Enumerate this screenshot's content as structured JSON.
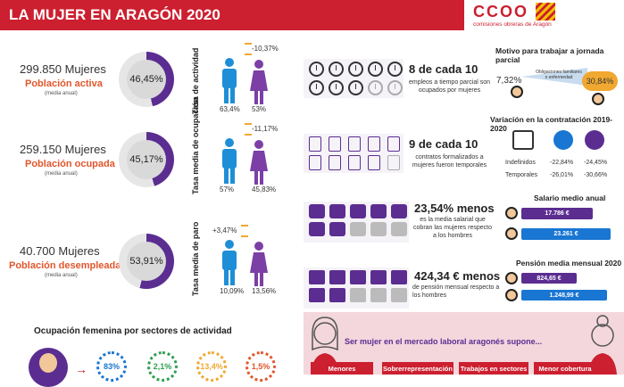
{
  "header": {
    "title": "LA MUJER EN ARAGÓN 2020",
    "logo_text": "CCOO",
    "logo_sub": "comisiones obreras de Aragón"
  },
  "colors": {
    "red": "#cc1f2f",
    "purple": "#5b2d91",
    "blue": "#1976d2",
    "orange": "#e2562c"
  },
  "left": {
    "rows": [
      {
        "count": "299.850 Mujeres",
        "label": "Población activa",
        "note": "(media anual)",
        "ring": "46,45%",
        "ring_fraction": 0.4645,
        "vlabel": "Tasa de actividad",
        "diff": "-10,37%",
        "men": "63,4%",
        "women": "53%"
      },
      {
        "count": "259.150 Mujeres",
        "label": "Población ocupada",
        "note": "(media anual)",
        "ring": "45,17%",
        "ring_fraction": 0.4517,
        "vlabel": "Tasa media de ocupación",
        "diff": "-11,17%",
        "men": "57%",
        "women": "45,83%"
      },
      {
        "count": "40.700 Mujeres",
        "label": "Población desempleada",
        "note": "(media anual)",
        "ring": "53,91%",
        "ring_fraction": 0.5391,
        "vlabel": "Tasa media de paro",
        "diff": "+3,47%",
        "men": "10,09%",
        "women": "13,56%"
      }
    ],
    "sectors_title": "Ocupación femenina por sectores de actividad",
    "sectors": [
      "83%",
      "2,1%",
      "13,4%",
      "1,5%"
    ]
  },
  "middle": {
    "items": [
      {
        "big": "8 de cada 10",
        "text": "empleos a tiempo parcial son ocupados por mujeres"
      },
      {
        "big": "9 de cada 10",
        "text": "contratos formalizados a mujeres fueron temporales"
      },
      {
        "big": "23,54% menos",
        "text": "es la media salarial que cobran las mujeres respecto a los hombres"
      },
      {
        "big": "424,34 € menos",
        "text": "de pensión mensual respecto a los hombres"
      }
    ],
    "bottom_title": "Ser mujer en el mercado laboral aragonés supone...",
    "banners": [
      "Menores",
      "Sobrerrepresentación",
      "Trabajos en sectores",
      "Menor cobertura"
    ]
  },
  "right": {
    "parcial_title": "Motivo para trabajar a jornada parcial",
    "parcial_men": "7,32%",
    "parcial_women": "30,84%",
    "parcial_reason": "Obligaciones familiares o enfermedad",
    "contr_title": "Variación en la contratación 2019-2020",
    "contr_rows": [
      {
        "label": "Indefinidos",
        "men": "-22,84%",
        "women": "-24,45%"
      },
      {
        "label": "Temporales",
        "men": "-26,01%",
        "women": "-30,66%"
      }
    ],
    "salary_title": "Salario medio anual",
    "salary_women": "17.786 €",
    "salary_men": "23.261 €",
    "pension_title": "Pensión media mensual 2020",
    "pension_women": "824,65 €",
    "pension_men": "1.248,99 €"
  }
}
